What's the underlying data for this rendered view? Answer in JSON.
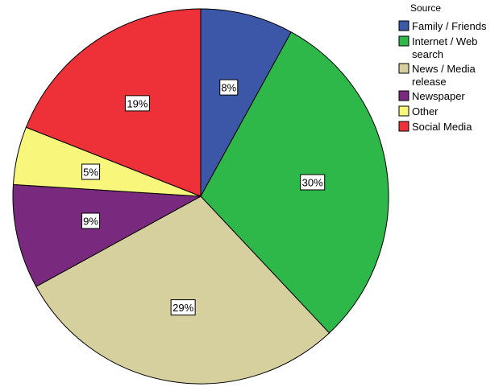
{
  "chart_data": {
    "type": "pie",
    "legend_title": "Source",
    "legend_position": "top-right",
    "start_angle_deg": 0,
    "direction": "clockwise",
    "slices": [
      {
        "name": "Family / Friends",
        "value": 8,
        "label": "8%",
        "color": "#3C57A8"
      },
      {
        "name": "Internet / Web search",
        "value": 30,
        "label": "30%",
        "color": "#2EB84A"
      },
      {
        "name": "News / Media release",
        "value": 29,
        "label": "29%",
        "color": "#D6CF9E"
      },
      {
        "name": "Newspaper",
        "value": 9,
        "label": "9%",
        "color": "#7A2A7E"
      },
      {
        "name": "Other",
        "value": 5,
        "label": "5%",
        "color": "#F9F77B"
      },
      {
        "name": "Social Media",
        "value": 19,
        "label": "19%",
        "color": "#EE3038"
      }
    ],
    "legend_entries": [
      [
        "Family / Friends"
      ],
      [
        "Internet / Web",
        "search"
      ],
      [
        "News / Media",
        "release"
      ],
      [
        "Newspaper"
      ],
      [
        "Other"
      ],
      [
        "Social Media"
      ]
    ]
  }
}
